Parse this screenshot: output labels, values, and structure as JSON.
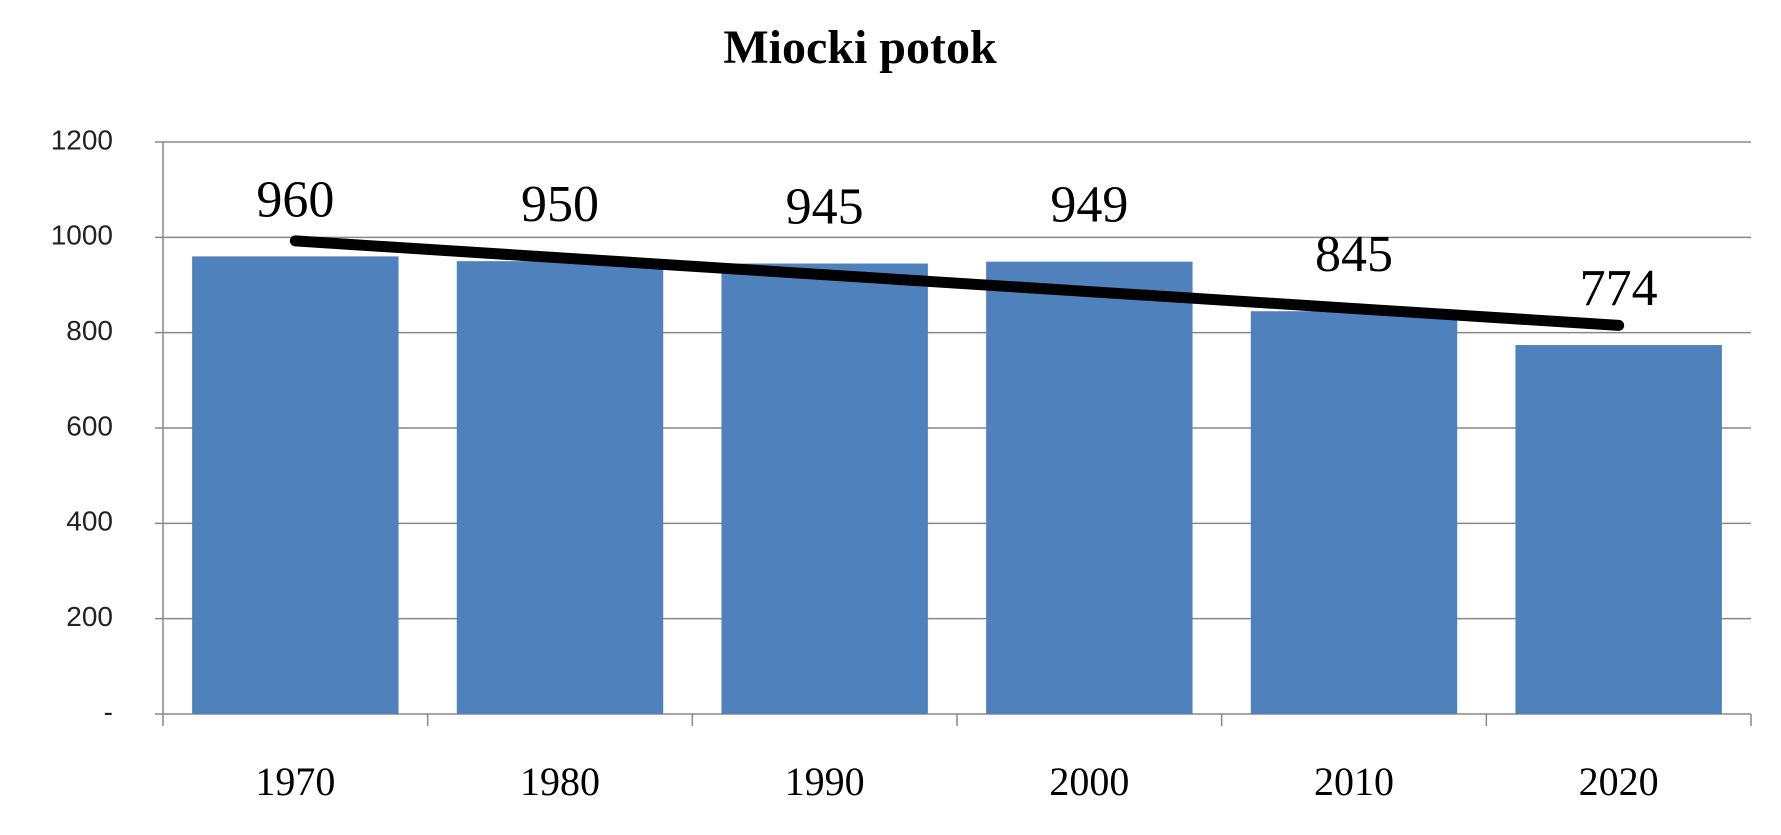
{
  "chart_data": {
    "type": "bar",
    "title": "Miocki potok",
    "categories": [
      "1970",
      "1980",
      "1990",
      "2000",
      "2010",
      "2020"
    ],
    "values": [
      960,
      950,
      945,
      949,
      845,
      774
    ],
    "color": "#4f81bd",
    "ylim": [
      0,
      1200
    ],
    "yticks": [
      {
        "value": 0,
        "label": "-"
      },
      200,
      400,
      600,
      800,
      1000,
      1200
    ],
    "grid": true,
    "trendline": true,
    "trendline_color": "#000000"
  }
}
